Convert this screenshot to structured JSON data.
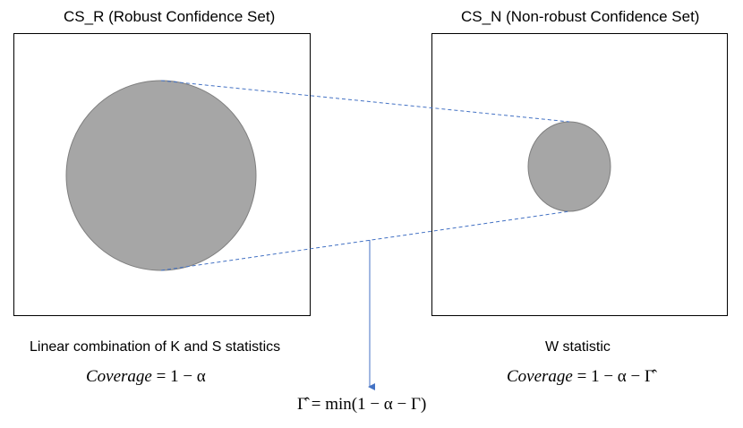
{
  "left_panel": {
    "title": "CS_R (Robust Confidence Set)",
    "caption": "Linear combination of K and S statistics",
    "coverage_label": "Coverage",
    "coverage_rhs": "= 1 − α"
  },
  "right_panel": {
    "title": "CS_N (Non-robust Confidence Set)",
    "caption": "W statistic",
    "coverage_label": "Coverage",
    "coverage_rhs": "= 1 − α − Γ̂"
  },
  "gamma_formula": "Γ̂ = min(1 − α − Γ)",
  "colors": {
    "circle_fill": "#a6a6a6",
    "circle_stroke": "#7f7f7f",
    "connector_line": "#4472c4",
    "box_stroke": "#000000"
  }
}
